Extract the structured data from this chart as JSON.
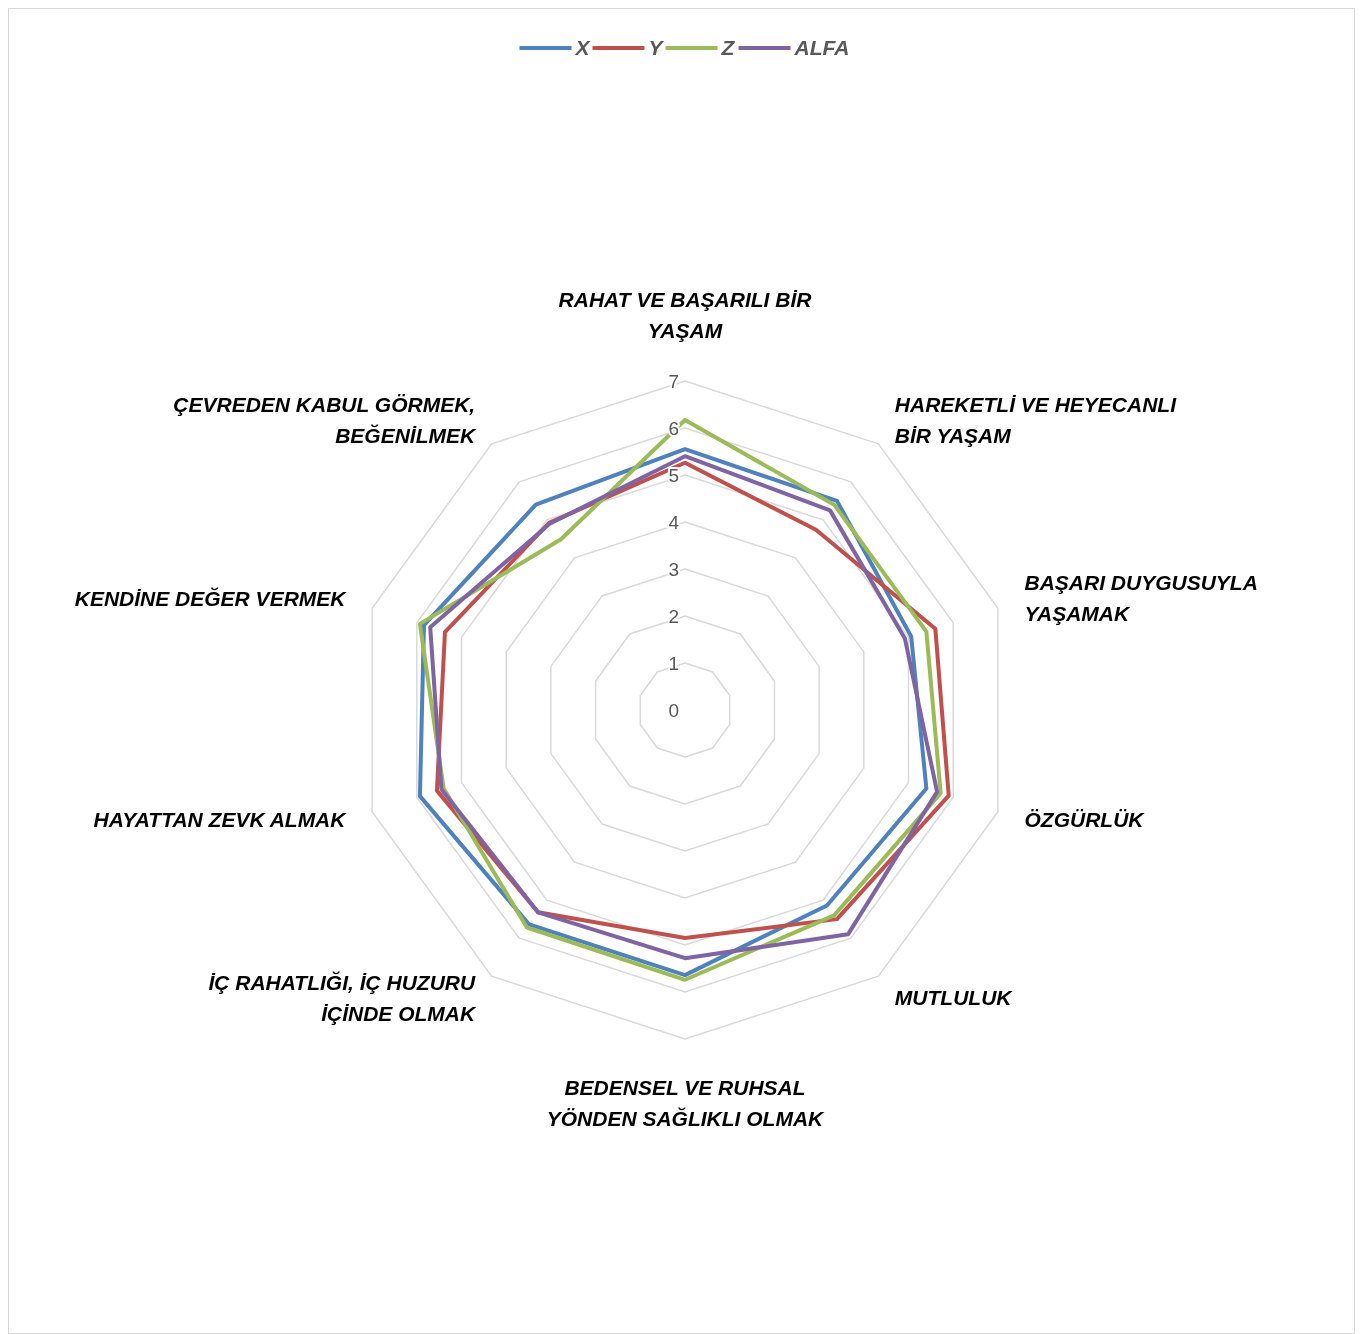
{
  "chart_data": {
    "type": "radar",
    "categories": [
      "RAHAT VE BAŞARILI BİR YAŞAM",
      "HAREKETLİ VE HEYECANLI BİR YAŞAM",
      "BAŞARI DUYGUSUYLA YAŞAMAK",
      "ÖZGÜRLÜK",
      "MUTLULUK",
      "BEDENSEL VE RUHSAL YÖNDEN SAĞLIKLI OLMAK",
      "İÇ RAHATLIĞI, İÇ HUZURU İÇİNDE OLMAK",
      "HAYATTAN ZEVK ALMAK",
      "KENDİNE DEĞER VERMEK",
      "ÇEVREDEN KABUL GÖRMEK, BEĞENİLMEK"
    ],
    "series": [
      {
        "name": "X",
        "color": "#4f81bd",
        "values": [
          5.55,
          5.5,
          5.06,
          5.4,
          5.14,
          5.64,
          5.64,
          5.93,
          5.84,
          5.4
        ]
      },
      {
        "name": "Y",
        "color": "#c0504d",
        "values": [
          5.26,
          4.74,
          5.6,
          5.9,
          5.5,
          4.85,
          5.32,
          5.55,
          5.37,
          4.92
        ]
      },
      {
        "name": "Z",
        "color": "#9bbb59",
        "values": [
          6.17,
          5.4,
          5.4,
          5.72,
          5.4,
          5.74,
          5.72,
          5.4,
          5.93,
          4.49
        ]
      },
      {
        "name": "ALFA",
        "color": "#8064a2",
        "values": [
          5.4,
          5.25,
          4.92,
          5.64,
          5.9,
          5.28,
          5.32,
          5.45,
          5.7,
          4.9
        ]
      }
    ],
    "ylim": [
      0,
      7
    ],
    "yticks": [
      0,
      1,
      2,
      3,
      4,
      5,
      6,
      7
    ],
    "grid": true,
    "legend": "top",
    "line_style": "solid",
    "marker": "none"
  }
}
